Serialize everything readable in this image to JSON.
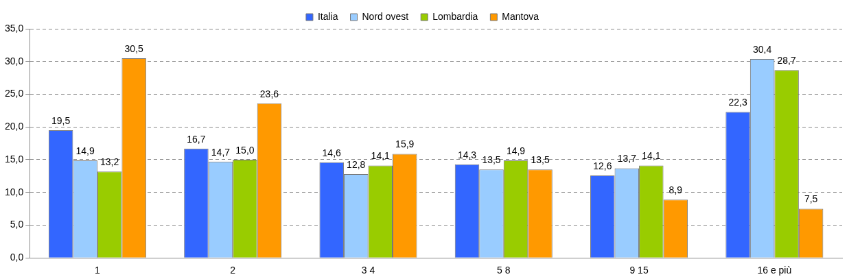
{
  "chart_data": {
    "type": "bar",
    "categories": [
      "1",
      "2",
      "3 4",
      "5 8",
      "9 15",
      "16 e più"
    ],
    "series": [
      {
        "name": "Italia",
        "color": "#3366ff",
        "values": [
          19.5,
          16.7,
          14.6,
          14.3,
          12.6,
          22.3
        ],
        "value_labels": [
          "19,5",
          "16,7",
          "14,6",
          "14,3",
          "12,6",
          "22,3"
        ]
      },
      {
        "name": "Nord ovest",
        "color": "#99ccff",
        "values": [
          14.9,
          14.7,
          12.8,
          13.5,
          13.7,
          30.4
        ],
        "value_labels": [
          "14,9",
          "14,7",
          "12,8",
          "13,5",
          "13,7",
          "30,4"
        ]
      },
      {
        "name": "Lombardia",
        "color": "#99cc00",
        "values": [
          13.2,
          15.0,
          14.1,
          14.9,
          14.1,
          28.7
        ],
        "value_labels": [
          "13,2",
          "15,0",
          "14,1",
          "14,9",
          "14,1",
          "28,7"
        ]
      },
      {
        "name": "Mantova",
        "color": "#ff9900",
        "values": [
          30.5,
          23.6,
          15.9,
          13.5,
          8.9,
          7.5
        ],
        "value_labels": [
          "30,5",
          "23,6",
          "15,9",
          "13,5",
          "8,9",
          "7,5"
        ]
      }
    ],
    "ylim": [
      0,
      35
    ],
    "yticks": [
      {
        "value": 0,
        "label": "0,0"
      },
      {
        "value": 5,
        "label": "5,0"
      },
      {
        "value": 10,
        "label": "10,0"
      },
      {
        "value": 15,
        "label": "15,0"
      },
      {
        "value": 20,
        "label": "20,0"
      },
      {
        "value": 25,
        "label": "25,0"
      },
      {
        "value": 30,
        "label": "30,0"
      },
      {
        "value": 35,
        "label": "35,0"
      }
    ],
    "grid": "y",
    "legend": "top"
  }
}
